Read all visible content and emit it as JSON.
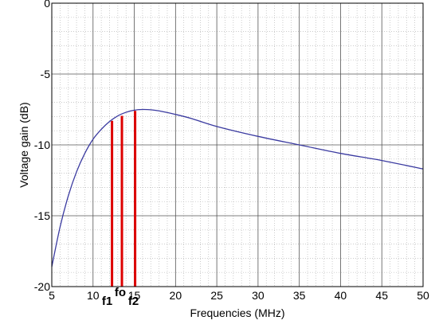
{
  "chart_data": {
    "type": "line",
    "title": "",
    "xlabel": "Frequencies (MHz)",
    "ylabel": "Voltage gain (dB)",
    "xlim": [
      5,
      50
    ],
    "ylim": [
      -20,
      0
    ],
    "x_ticks": [
      5,
      10,
      15,
      20,
      25,
      30,
      35,
      40,
      45,
      50
    ],
    "y_ticks": [
      0,
      -5,
      -10,
      -15,
      -20
    ],
    "grid": true,
    "minor_grid": true,
    "series": [
      {
        "color": "#3a3aa0",
        "x": [
          5,
          6,
          7,
          8,
          9,
          10,
          11,
          12,
          13,
          14,
          15,
          16,
          17,
          18,
          20,
          22,
          25,
          30,
          35,
          40,
          45,
          50
        ],
        "y": [
          -18.6,
          -15.8,
          -13.6,
          -11.9,
          -10.6,
          -9.6,
          -8.9,
          -8.35,
          -7.95,
          -7.7,
          -7.55,
          -7.5,
          -7.52,
          -7.6,
          -7.85,
          -8.15,
          -8.7,
          -9.4,
          -10.0,
          -10.6,
          -11.1,
          -11.7
        ]
      }
    ],
    "markers": [
      {
        "label": "f1",
        "x": 12.3,
        "y": -8.3,
        "color": "#dd0000"
      },
      {
        "label": "fo",
        "x": 13.5,
        "y": -7.95,
        "color": "#dd0000"
      },
      {
        "label": "f2",
        "x": 15.1,
        "y": -7.6,
        "color": "#dd0000"
      }
    ]
  }
}
